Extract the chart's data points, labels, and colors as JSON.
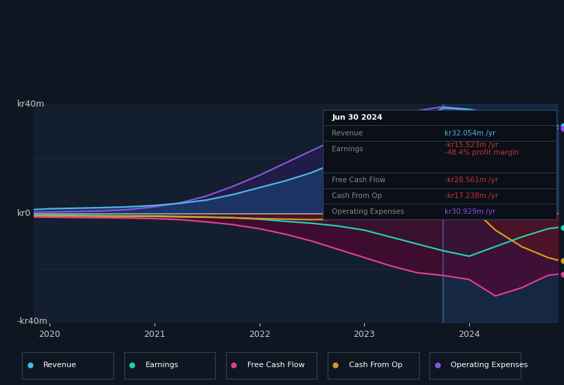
{
  "bg_color": "#0e1621",
  "plot_bg_color": "#131e2e",
  "grid_color": "#1e2d40",
  "zero_line_color": "#c0c0c0",
  "ylim": [
    -40,
    40
  ],
  "xlim": [
    2019.85,
    2024.85
  ],
  "ylabel_top": "kr40m",
  "ylabel_zero": "kr0",
  "ylabel_bottom": "-kr40m",
  "xticks": [
    2020,
    2021,
    2022,
    2023,
    2024
  ],
  "highlight_x": 2023.75,
  "series": {
    "Revenue": {
      "color": "#4db8e8",
      "fill_color": "#1a3f6f",
      "fill_alpha": 0.7,
      "zorder_fill": 3,
      "zorder_line": 12,
      "x": [
        2019.85,
        2020.0,
        2020.25,
        2020.5,
        2020.75,
        2021.0,
        2021.25,
        2021.5,
        2021.75,
        2022.0,
        2022.25,
        2022.5,
        2022.75,
        2023.0,
        2023.25,
        2023.5,
        2023.75,
        2024.0,
        2024.25,
        2024.5,
        2024.75,
        2024.85
      ],
      "y": [
        1.5,
        1.8,
        2.0,
        2.2,
        2.5,
        3.0,
        3.8,
        5.0,
        7.0,
        9.5,
        12.0,
        15.0,
        19.0,
        24.0,
        29.0,
        34.0,
        38.5,
        38.0,
        36.5,
        35.0,
        33.0,
        32.0
      ]
    },
    "Operating Expenses": {
      "color": "#8855dd",
      "fill_color": "#2a1a55",
      "fill_alpha": 0.65,
      "zorder_fill": 2,
      "zorder_line": 11,
      "x": [
        2019.85,
        2020.0,
        2020.25,
        2020.5,
        2020.75,
        2021.0,
        2021.25,
        2021.5,
        2021.75,
        2022.0,
        2022.25,
        2022.5,
        2022.75,
        2023.0,
        2023.25,
        2023.5,
        2023.75,
        2024.0,
        2024.25,
        2024.5,
        2024.75,
        2024.85
      ],
      "y": [
        0.5,
        0.6,
        0.8,
        1.0,
        1.5,
        2.5,
        4.0,
        6.5,
        10.0,
        14.0,
        18.5,
        23.0,
        27.5,
        31.0,
        34.5,
        37.5,
        39.0,
        38.0,
        35.5,
        33.5,
        31.5,
        31.0
      ]
    },
    "Cash From Op": {
      "color": "#d4a020",
      "fill_color": "#5a3800",
      "fill_alpha": 0.55,
      "zorder_fill": 5,
      "zorder_line": 14,
      "x": [
        2019.85,
        2020.0,
        2020.25,
        2020.5,
        2020.75,
        2021.0,
        2021.25,
        2021.5,
        2021.75,
        2022.0,
        2022.25,
        2022.5,
        2022.75,
        2023.0,
        2023.25,
        2023.5,
        2023.75,
        2024.0,
        2024.25,
        2024.5,
        2024.75,
        2024.85
      ],
      "y": [
        -0.8,
        -0.8,
        -0.9,
        -1.0,
        -1.0,
        -1.0,
        -1.2,
        -1.3,
        -1.5,
        -1.8,
        -2.0,
        -2.2,
        -2.0,
        4.0,
        10.0,
        14.5,
        12.5,
        3.0,
        -6.0,
        -12.0,
        -16.0,
        -17.0
      ]
    },
    "Earnings": {
      "color": "#20d4b0",
      "fill_color": "#003a30",
      "fill_alpha": 0.5,
      "zorder_fill": 4,
      "zorder_line": 13,
      "x": [
        2019.85,
        2020.0,
        2020.25,
        2020.5,
        2020.75,
        2021.0,
        2021.25,
        2021.5,
        2021.75,
        2022.0,
        2022.25,
        2022.5,
        2022.75,
        2023.0,
        2023.25,
        2023.5,
        2023.75,
        2024.0,
        2024.25,
        2024.5,
        2024.75,
        2024.85
      ],
      "y": [
        -0.5,
        -0.5,
        -0.6,
        -0.7,
        -0.8,
        -0.8,
        -1.0,
        -1.2,
        -1.5,
        -2.0,
        -2.8,
        -3.5,
        -4.5,
        -6.0,
        -8.5,
        -11.0,
        -13.5,
        -15.5,
        -12.0,
        -8.5,
        -5.5,
        -5.0
      ]
    },
    "Free Cash Flow": {
      "color": "#e04090",
      "fill_color": "#5a0030",
      "fill_alpha": 0.6,
      "zorder_fill": 6,
      "zorder_line": 15,
      "x": [
        2019.85,
        2020.0,
        2020.25,
        2020.5,
        2020.75,
        2021.0,
        2021.25,
        2021.5,
        2021.75,
        2022.0,
        2022.25,
        2022.5,
        2022.75,
        2023.0,
        2023.25,
        2023.5,
        2023.75,
        2024.0,
        2024.25,
        2024.5,
        2024.75,
        2024.85
      ],
      "y": [
        -1.2,
        -1.3,
        -1.4,
        -1.5,
        -1.6,
        -1.8,
        -2.2,
        -3.0,
        -4.0,
        -5.5,
        -7.5,
        -10.0,
        -13.0,
        -16.0,
        -19.0,
        -21.5,
        -22.5,
        -24.0,
        -30.0,
        -27.0,
        -22.5,
        -22.0
      ]
    }
  },
  "tooltip": {
    "date": "Jun 30 2024",
    "rows": [
      {
        "label": "Revenue",
        "value": "kr32.054m /yr",
        "val_color": "#4db8e8"
      },
      {
        "label": "Earnings",
        "value": "-kr15.523m /yr",
        "val_color": "#cc3333",
        "sub_value": "-48.4% profit margin",
        "sub_color": "#cc3333"
      },
      {
        "label": "Free Cash Flow",
        "value": "-kr28.561m /yr",
        "val_color": "#cc3333"
      },
      {
        "label": "Cash From Op",
        "value": "-kr17.238m /yr",
        "val_color": "#cc3333"
      },
      {
        "label": "Operating Expenses",
        "value": "kr30.929m /yr",
        "val_color": "#8855dd"
      }
    ]
  },
  "legend": [
    {
      "label": "Revenue",
      "color": "#4db8e8"
    },
    {
      "label": "Earnings",
      "color": "#20d4b0"
    },
    {
      "label": "Free Cash Flow",
      "color": "#e04090"
    },
    {
      "label": "Cash From Op",
      "color": "#d4a020"
    },
    {
      "label": "Operating Expenses",
      "color": "#8855dd"
    }
  ]
}
